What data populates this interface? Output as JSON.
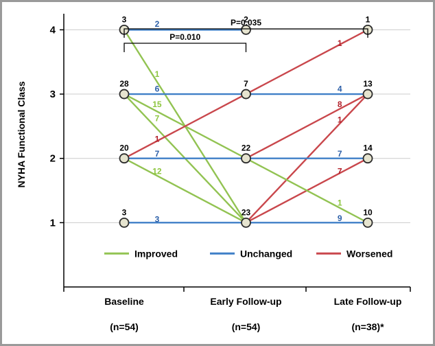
{
  "chart_data": {
    "type": "line",
    "title": "",
    "ylabel": "NYHA Functional Class",
    "ylim": [
      0,
      4
    ],
    "yticks": [
      1,
      2,
      3,
      4
    ],
    "grid": true,
    "categories": [
      {
        "label": "Baseline",
        "n": "(n=54)"
      },
      {
        "label": "Early Follow-up",
        "n": "(n=54)"
      },
      {
        "label": "Late Follow-up",
        "n": "(n=38)*"
      }
    ],
    "node_counts": [
      {
        "time": 0,
        "class": 4,
        "count": "3"
      },
      {
        "time": 0,
        "class": 3,
        "count": "28"
      },
      {
        "time": 0,
        "class": 2,
        "count": "20"
      },
      {
        "time": 0,
        "class": 1,
        "count": "3"
      },
      {
        "time": 1,
        "class": 4,
        "count": "2"
      },
      {
        "time": 1,
        "class": 3,
        "count": "7"
      },
      {
        "time": 1,
        "class": 2,
        "count": "22"
      },
      {
        "time": 1,
        "class": 1,
        "count": "23"
      },
      {
        "time": 2,
        "class": 4,
        "count": "1"
      },
      {
        "time": 2,
        "class": 3,
        "count": "13"
      },
      {
        "time": 2,
        "class": 2,
        "count": "14"
      },
      {
        "time": 2,
        "class": 1,
        "count": "10"
      }
    ],
    "transitions": [
      {
        "from_time": 0,
        "from": 4,
        "to": 4,
        "count": "2",
        "type": "unchanged",
        "lx": 0.27,
        "ly": 4.09
      },
      {
        "from_time": 0,
        "from": 4,
        "to": 1,
        "count": "1",
        "type": "improved",
        "lx": 0.27,
        "ly": 3.31
      },
      {
        "from_time": 0,
        "from": 3,
        "to": 3,
        "count": "6",
        "type": "unchanged",
        "lx": 0.27,
        "ly": 3.08
      },
      {
        "from_time": 0,
        "from": 3,
        "to": 2,
        "count": "15",
        "type": "improved",
        "lx": 0.27,
        "ly": 2.84
      },
      {
        "from_time": 0,
        "from": 3,
        "to": 1,
        "count": "7",
        "type": "improved",
        "lx": 0.27,
        "ly": 2.62
      },
      {
        "from_time": 0,
        "from": 2,
        "to": 3,
        "count": "1",
        "type": "worsened",
        "lx": 0.27,
        "ly": 2.3
      },
      {
        "from_time": 0,
        "from": 2,
        "to": 2,
        "count": "7",
        "type": "unchanged",
        "lx": 0.27,
        "ly": 2.07
      },
      {
        "from_time": 0,
        "from": 2,
        "to": 1,
        "count": "12",
        "type": "improved",
        "lx": 0.27,
        "ly": 1.8
      },
      {
        "from_time": 0,
        "from": 1,
        "to": 1,
        "count": "3",
        "type": "unchanged",
        "lx": 0.27,
        "ly": 1.05
      },
      {
        "from_time": 1,
        "from": 3,
        "to": 4,
        "count": "1",
        "type": "worsened",
        "lx": 1.77,
        "ly": 3.79
      },
      {
        "from_time": 1,
        "from": 3,
        "to": 3,
        "count": "4",
        "type": "unchanged",
        "lx": 1.77,
        "ly": 3.08
      },
      {
        "from_time": 1,
        "from": 2,
        "to": 3,
        "count": "8",
        "type": "worsened",
        "lx": 1.77,
        "ly": 2.84
      },
      {
        "from_time": 1,
        "from": 1,
        "to": 3,
        "count": "1",
        "type": "worsened",
        "lx": 1.77,
        "ly": 2.6
      },
      {
        "from_time": 1,
        "from": 2,
        "to": 2,
        "count": "7",
        "type": "unchanged",
        "lx": 1.77,
        "ly": 2.07
      },
      {
        "from_time": 1,
        "from": 1,
        "to": 2,
        "count": "7",
        "type": "worsened",
        "lx": 1.77,
        "ly": 1.8
      },
      {
        "from_time": 1,
        "from": 2,
        "to": 1,
        "count": "1",
        "type": "improved",
        "lx": 1.77,
        "ly": 1.31
      },
      {
        "from_time": 1,
        "from": 1,
        "to": 1,
        "count": "9",
        "type": "unchanged",
        "lx": 1.77,
        "ly": 1.07
      }
    ],
    "legend": [
      {
        "key": "improved",
        "label": "Improved"
      },
      {
        "key": "unchanged",
        "label": "Unchanged"
      },
      {
        "key": "worsened",
        "label": "Worsened"
      }
    ],
    "legend_position": "bottom-inside",
    "colors": {
      "improved": "#92c352",
      "unchanged": "#3f7fc7",
      "worsened": "#c9474c",
      "node_fill": "#e6e4cf",
      "node_stroke": "#2b2b2b",
      "grid": "#cccccc"
    },
    "label_colors": {
      "improved": "#8dc63f",
      "unchanged": "#2c5fa8",
      "worsened": "#b2202a"
    },
    "brackets": [
      {
        "label": "P=0.035",
        "from": 0,
        "to": 2,
        "level": "outer"
      },
      {
        "label": "P=0.010",
        "from": 0,
        "to": 1,
        "level": "inner"
      }
    ]
  }
}
